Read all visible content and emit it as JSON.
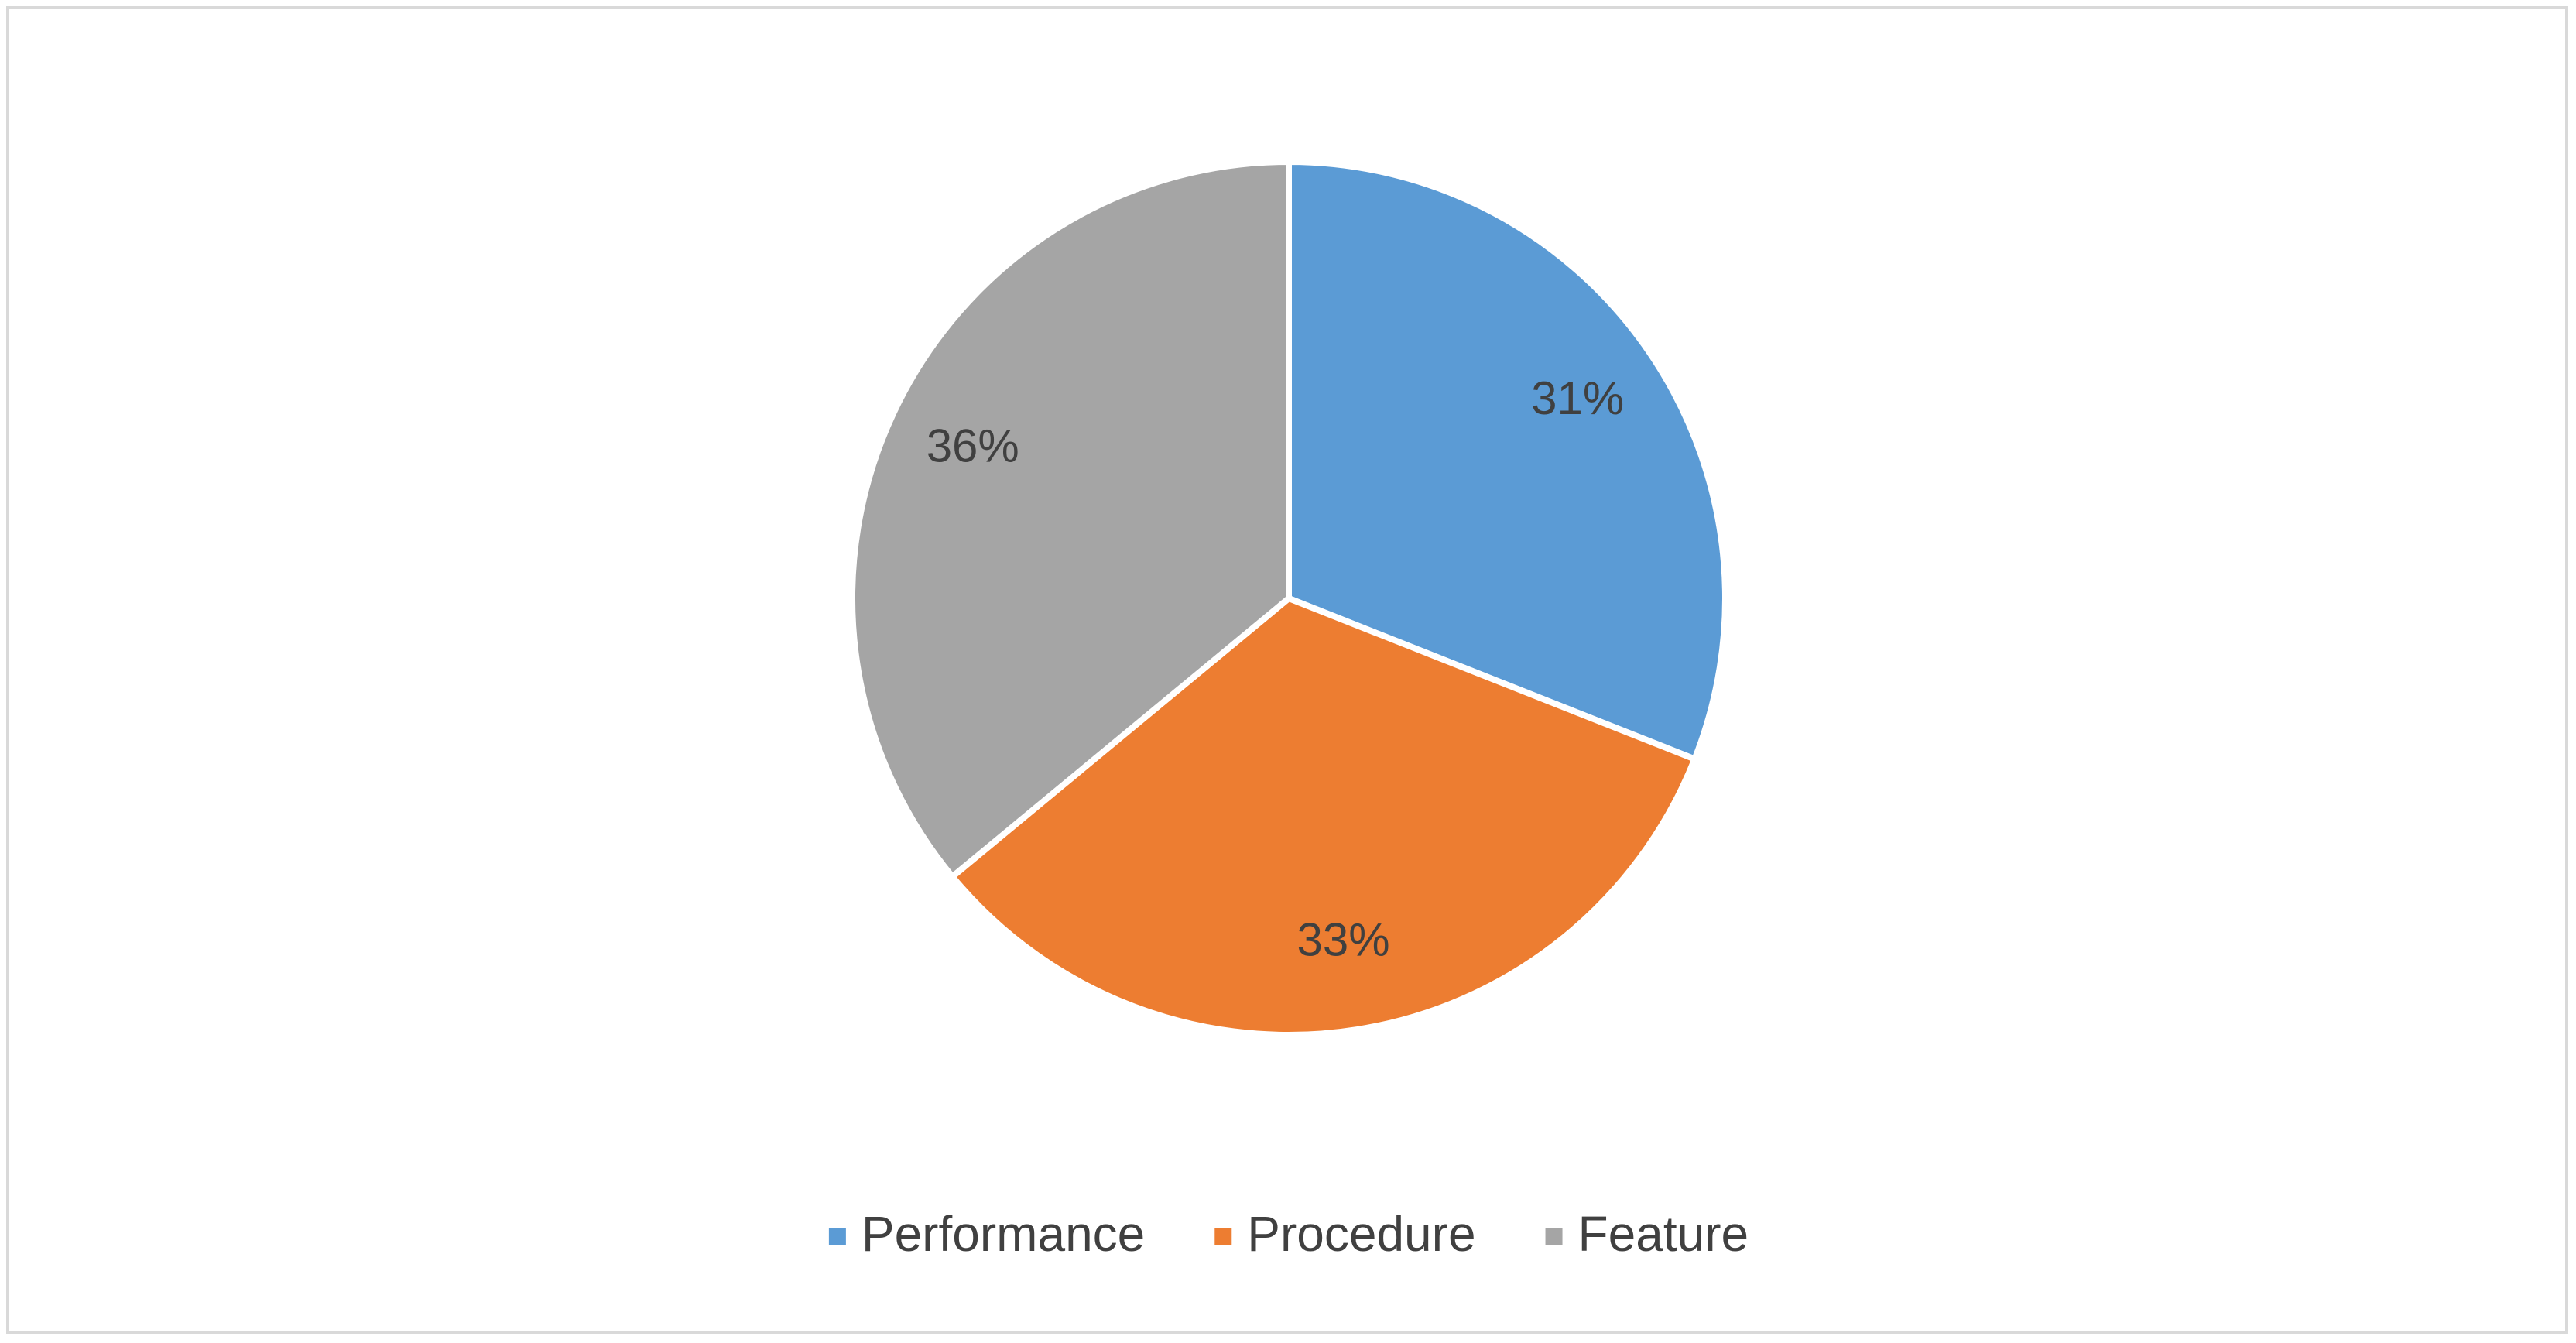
{
  "chart_data": {
    "type": "pie",
    "categories": [
      "Performance",
      "Procedure",
      "Feature"
    ],
    "values": [
      31,
      33,
      36
    ],
    "value_labels": [
      "31%",
      "33%",
      "36%"
    ],
    "colors": [
      "#5b9bd5",
      "#ed7d31",
      "#a5a5a5"
    ],
    "legend": "bottom"
  }
}
